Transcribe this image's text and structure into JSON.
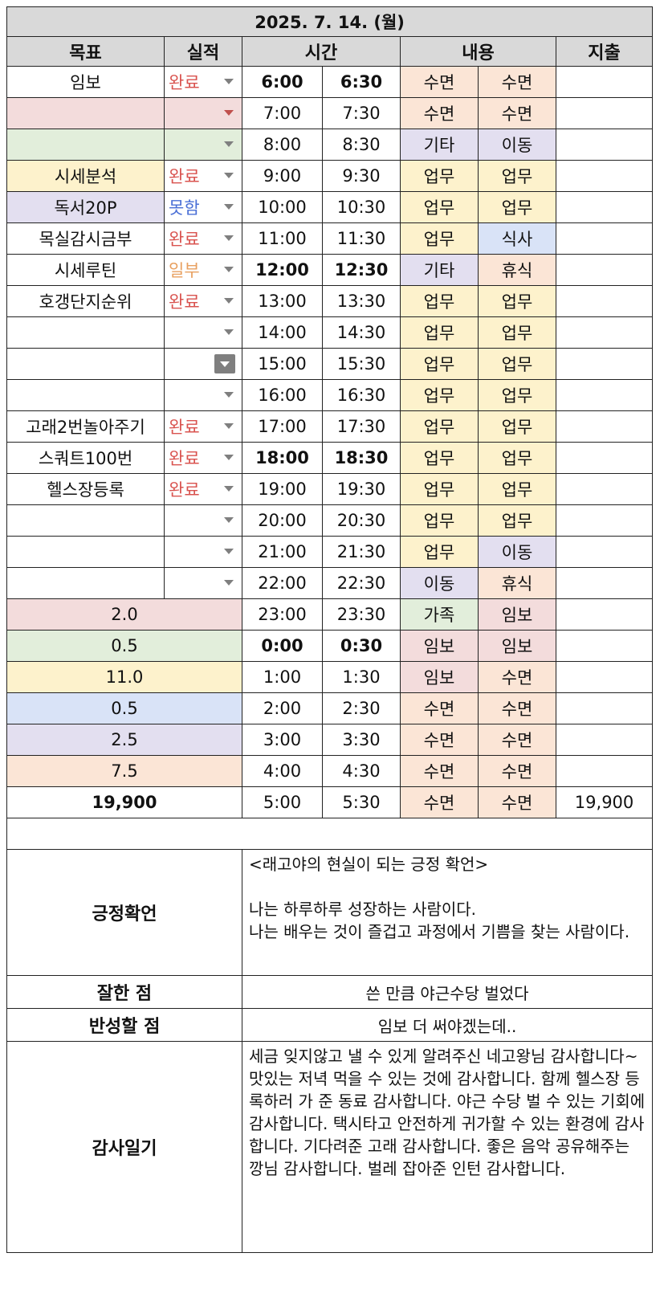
{
  "title": "2025. 7. 14. (월)",
  "headers": {
    "goal": "목표",
    "result": "실적",
    "time": "시간",
    "content": "내용",
    "expense": "지출"
  },
  "rows": [
    {
      "goal": "임보",
      "result": "완료",
      "t1": "6:00",
      "t2": "6:30",
      "c1": "수면",
      "c2": "수면",
      "expense": ""
    },
    {
      "goal": "",
      "result": "",
      "t1": "7:00",
      "t2": "7:30",
      "c1": "수면",
      "c2": "수면",
      "expense": ""
    },
    {
      "goal": "",
      "result": "",
      "t1": "8:00",
      "t2": "8:30",
      "c1": "기타",
      "c2": "이동",
      "expense": ""
    },
    {
      "goal": "시세분석",
      "result": "완료",
      "t1": "9:00",
      "t2": "9:30",
      "c1": "업무",
      "c2": "업무",
      "expense": ""
    },
    {
      "goal": "독서20P",
      "result": "못함",
      "t1": "10:00",
      "t2": "10:30",
      "c1": "업무",
      "c2": "업무",
      "expense": ""
    },
    {
      "goal": "목실감시금부",
      "result": "완료",
      "t1": "11:00",
      "t2": "11:30",
      "c1": "업무",
      "c2": "식사",
      "expense": ""
    },
    {
      "goal": "시세루틴",
      "result": "일부",
      "t1": "12:00",
      "t2": "12:30",
      "c1": "기타",
      "c2": "휴식",
      "expense": ""
    },
    {
      "goal": "호갱단지순위",
      "result": "완료",
      "t1": "13:00",
      "t2": "13:30",
      "c1": "업무",
      "c2": "업무",
      "expense": ""
    },
    {
      "goal": "",
      "result": "",
      "t1": "14:00",
      "t2": "14:30",
      "c1": "업무",
      "c2": "업무",
      "expense": ""
    },
    {
      "goal": "",
      "result": "",
      "t1": "15:00",
      "t2": "15:30",
      "c1": "업무",
      "c2": "업무",
      "expense": ""
    },
    {
      "goal": "",
      "result": "",
      "t1": "16:00",
      "t2": "16:30",
      "c1": "업무",
      "c2": "업무",
      "expense": ""
    },
    {
      "goal": "고래2번놀아주기",
      "result": "완료",
      "t1": "17:00",
      "t2": "17:30",
      "c1": "업무",
      "c2": "업무",
      "expense": ""
    },
    {
      "goal": "스쿼트100번",
      "result": "완료",
      "t1": "18:00",
      "t2": "18:30",
      "c1": "업무",
      "c2": "업무",
      "expense": ""
    },
    {
      "goal": "헬스장등록",
      "result": "완료",
      "t1": "19:00",
      "t2": "19:30",
      "c1": "업무",
      "c2": "업무",
      "expense": ""
    },
    {
      "goal": "",
      "result": "",
      "t1": "20:00",
      "t2": "20:30",
      "c1": "업무",
      "c2": "업무",
      "expense": ""
    },
    {
      "goal": "",
      "result": "",
      "t1": "21:00",
      "t2": "21:30",
      "c1": "업무",
      "c2": "이동",
      "expense": ""
    },
    {
      "goal": "",
      "result": "",
      "t1": "22:00",
      "t2": "22:30",
      "c1": "이동",
      "c2": "휴식",
      "expense": ""
    },
    {
      "summary": "2.0",
      "t1": "23:00",
      "t2": "23:30",
      "c1": "가족",
      "c2": "임보",
      "expense": ""
    },
    {
      "summary": "0.5",
      "t1": "0:00",
      "t2": "0:30",
      "c1": "임보",
      "c2": "임보",
      "expense": ""
    },
    {
      "summary": "11.0",
      "t1": "1:00",
      "t2": "1:30",
      "c1": "임보",
      "c2": "수면",
      "expense": ""
    },
    {
      "summary": "0.5",
      "t1": "2:00",
      "t2": "2:30",
      "c1": "수면",
      "c2": "수면",
      "expense": ""
    },
    {
      "summary": "2.5",
      "t1": "3:00",
      "t2": "3:30",
      "c1": "수면",
      "c2": "수면",
      "expense": ""
    },
    {
      "summary": "7.5",
      "t1": "4:00",
      "t2": "4:30",
      "c1": "수면",
      "c2": "수면",
      "expense": ""
    },
    {
      "summary": "19,900",
      "t1": "5:00",
      "t2": "5:30",
      "c1": "수면",
      "c2": "수면",
      "expense": "19,900"
    }
  ],
  "affirmation": {
    "label": "긍정확언",
    "heading": "<래고야의 현실이 되는 긍정 확언>",
    "line1": "나는 하루하루 성장하는 사람이다.",
    "line2": "나는 배우는 것이 즐겁고 과정에서 기쁨을 찾는 사람이다."
  },
  "well_done": {
    "label": "잘한 점",
    "text": "쓴 만큼 야근수당 벌었다"
  },
  "reflect": {
    "label": "반성할 점",
    "text": "임보 더 써야겠는데.."
  },
  "gratitude": {
    "label": "감사일기",
    "text": "세금 잊지않고 낼 수 있게 알려주신 네고왕님 감사합니다~ 맛있는 저녁 먹을 수 있는 것에 감사합니다. 함께 헬스장 등록하러 가 준 동료 감사합니다. 야근 수당 벌 수 있는 기회에 감사합니다. 택시타고 안전하게 귀가할 수 있는 환경에 감사합니다. 기다려준 고래 감사합니다. 좋은 음악 공유해주는 깡님 감사합니다. 벌레 잡아준 인턴 감사합니다."
  },
  "colors": {
    "header_bg": "#d9d9d9",
    "done": "#d9534f",
    "not_done": "#4a6fd6",
    "partial": "#e8a060",
    "sleep": "#fbe5d6",
    "work": "#fdf2cc",
    "etc": "#e3dff0",
    "meal": "#d9e3f7",
    "family": "#e2eedb",
    "house": "#f3dcdc"
  },
  "icons": {
    "dropdown": "dropdown-arrow-icon"
  }
}
